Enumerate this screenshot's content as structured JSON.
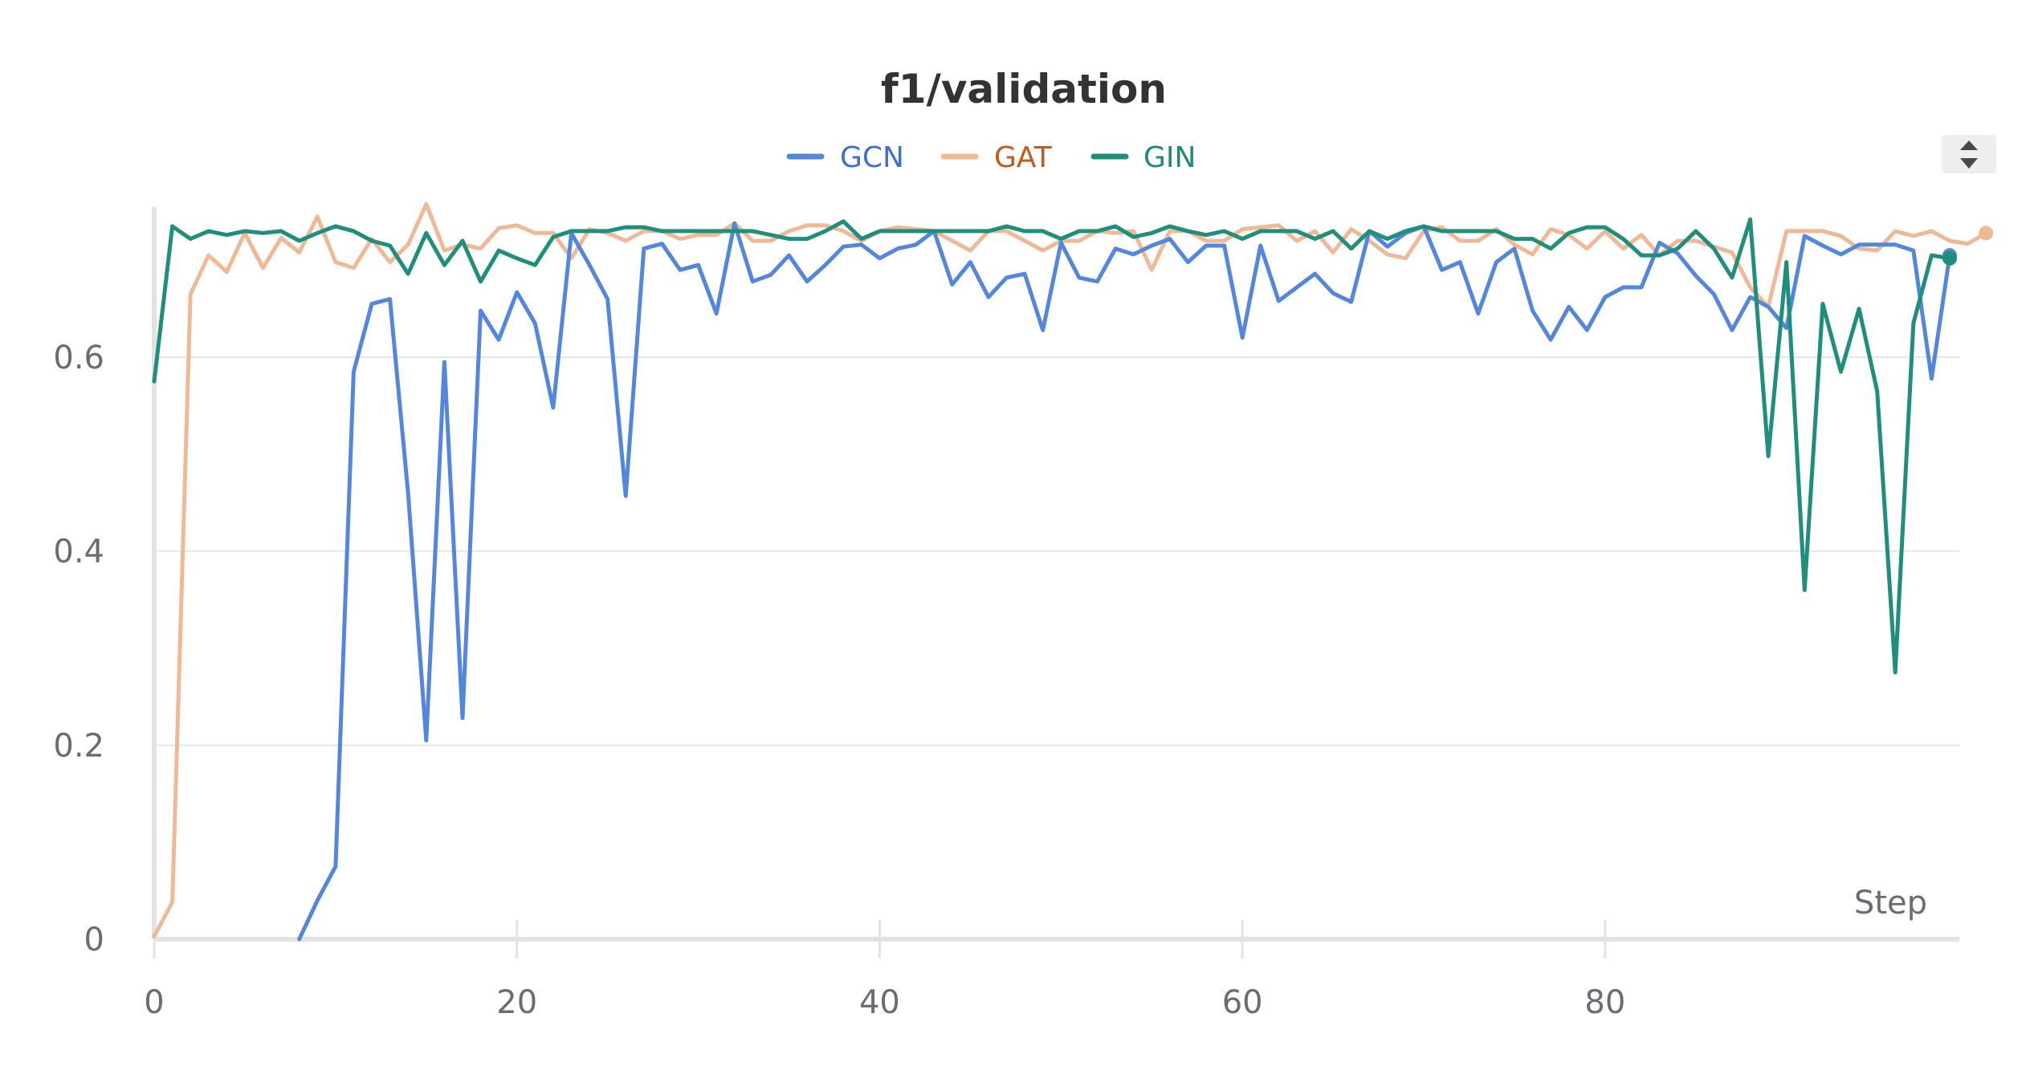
{
  "chart_data": {
    "type": "line",
    "title": "f1/validation",
    "xlabel": "Step",
    "ylabel": "",
    "xlim": [
      0,
      99
    ],
    "ylim": [
      0,
      0.75
    ],
    "x_ticks": [
      0,
      20,
      40,
      60,
      80
    ],
    "y_ticks": [
      0,
      0.2,
      0.4,
      0.6
    ],
    "grid": true,
    "legend_position": "top-center",
    "series": [
      {
        "name": "GCN",
        "color": "#5387dd",
        "label_color": "#3f6fd0",
        "x_start": 8,
        "values": [
          0.0,
          0.04,
          0.075,
          0.585,
          0.655,
          0.66,
          0.46,
          0.205,
          0.595,
          0.228,
          0.648,
          0.618,
          0.667,
          0.635,
          0.548,
          0.728,
          0.695,
          0.66,
          0.457,
          0.712,
          0.717,
          0.69,
          0.695,
          0.645,
          0.738,
          0.678,
          0.685,
          0.705,
          0.678,
          0.695,
          0.714,
          0.716,
          0.702,
          0.712,
          0.716,
          0.73,
          0.675,
          0.698,
          0.662,
          0.682,
          0.686,
          0.628,
          0.718,
          0.682,
          0.678,
          0.712,
          0.706,
          0.715,
          0.722,
          0.698,
          0.715,
          0.715,
          0.62,
          0.715,
          0.658,
          0.672,
          0.686,
          0.666,
          0.657,
          0.73,
          0.714,
          0.728,
          0.735,
          0.69,
          0.698,
          0.645,
          0.698,
          0.712,
          0.648,
          0.618,
          0.652,
          0.628,
          0.662,
          0.672,
          0.672,
          0.718,
          0.707,
          0.684,
          0.665,
          0.628,
          0.662,
          0.652,
          0.63,
          0.725,
          0.715,
          0.706,
          0.716,
          0.716,
          0.716,
          0.71,
          0.578,
          0.705
        ]
      },
      {
        "name": "GAT",
        "color": "#f0b996",
        "label_color": "#c35a1f",
        "x_start": 0,
        "values": [
          0.003,
          0.038,
          0.665,
          0.705,
          0.688,
          0.728,
          0.692,
          0.723,
          0.708,
          0.745,
          0.698,
          0.692,
          0.722,
          0.698,
          0.716,
          0.758,
          0.71,
          0.716,
          0.712,
          0.733,
          0.736,
          0.728,
          0.728,
          0.702,
          0.732,
          0.728,
          0.72,
          0.73,
          0.73,
          0.722,
          0.726,
          0.726,
          0.738,
          0.72,
          0.72,
          0.73,
          0.736,
          0.736,
          0.73,
          0.72,
          0.73,
          0.734,
          0.732,
          0.73,
          0.72,
          0.71,
          0.73,
          0.73,
          0.72,
          0.71,
          0.72,
          0.72,
          0.73,
          0.728,
          0.73,
          0.69,
          0.73,
          0.73,
          0.72,
          0.72,
          0.732,
          0.734,
          0.736,
          0.72,
          0.73,
          0.708,
          0.732,
          0.72,
          0.706,
          0.702,
          0.73,
          0.734,
          0.72,
          0.72,
          0.732,
          0.716,
          0.706,
          0.732,
          0.726,
          0.712,
          0.73,
          0.712,
          0.726,
          0.705,
          0.72,
          0.72,
          0.714,
          0.708,
          0.672,
          0.652,
          0.73,
          0.73,
          0.73,
          0.725,
          0.712,
          0.71,
          0.73,
          0.725,
          0.73,
          0.72,
          0.717,
          0.728
        ]
      },
      {
        "name": "GIN",
        "color": "#1f8f7b",
        "label_color": "#1e8a77",
        "x_start": 0,
        "values": [
          0.575,
          0.735,
          0.722,
          0.73,
          0.726,
          0.73,
          0.728,
          0.73,
          0.72,
          0.728,
          0.735,
          0.73,
          0.72,
          0.715,
          0.686,
          0.728,
          0.695,
          0.72,
          0.678,
          0.71,
          0.702,
          0.695,
          0.724,
          0.73,
          0.73,
          0.73,
          0.734,
          0.734,
          0.73,
          0.73,
          0.73,
          0.73,
          0.73,
          0.73,
          0.726,
          0.722,
          0.722,
          0.73,
          0.74,
          0.722,
          0.73,
          0.73,
          0.73,
          0.73,
          0.73,
          0.73,
          0.73,
          0.735,
          0.73,
          0.73,
          0.722,
          0.73,
          0.73,
          0.735,
          0.724,
          0.728,
          0.735,
          0.73,
          0.726,
          0.73,
          0.722,
          0.73,
          0.73,
          0.73,
          0.722,
          0.73,
          0.712,
          0.73,
          0.722,
          0.73,
          0.735,
          0.73,
          0.73,
          0.73,
          0.73,
          0.722,
          0.722,
          0.712,
          0.728,
          0.734,
          0.734,
          0.722,
          0.705,
          0.705,
          0.712,
          0.73,
          0.712,
          0.682,
          0.742,
          0.498,
          0.698,
          0.36,
          0.655,
          0.585,
          0.65,
          0.565,
          0.275,
          0.635,
          0.705,
          0.702
        ]
      }
    ]
  }
}
